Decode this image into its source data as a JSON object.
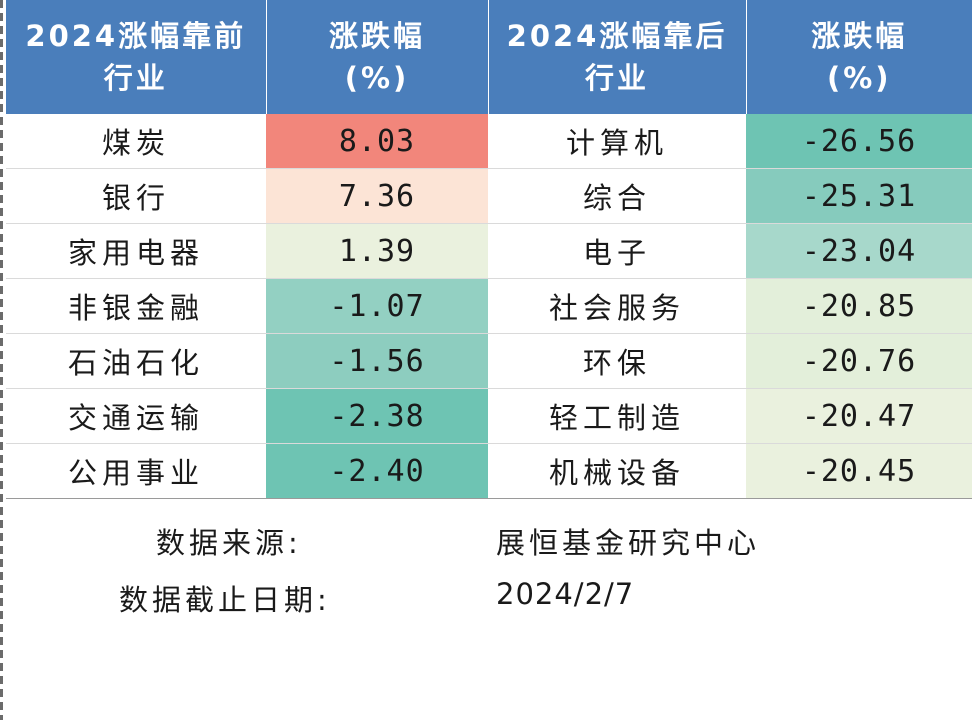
{
  "header": {
    "col1": [
      "2024涨幅靠前",
      "行业"
    ],
    "col2": [
      "涨跌幅",
      "(%)"
    ],
    "col3": [
      "2024涨幅靠后",
      "行业"
    ],
    "col4": [
      "涨跌幅",
      "(%)"
    ]
  },
  "chart_data": {
    "type": "table",
    "columns": [
      "2024涨幅靠前行业",
      "涨跌幅(%)",
      "2024涨幅靠后行业",
      "涨跌幅(%)"
    ],
    "rows": [
      {
        "top_industry": "煤炭",
        "top_change": "8.03",
        "bottom_industry": "计算机",
        "bottom_change": "-26.56"
      },
      {
        "top_industry": "银行",
        "top_change": "7.36",
        "bottom_industry": "综合",
        "bottom_change": "-25.31"
      },
      {
        "top_industry": "家用电器",
        "top_change": "1.39",
        "bottom_industry": "电子",
        "bottom_change": "-23.04"
      },
      {
        "top_industry": "非银金融",
        "top_change": "-1.07",
        "bottom_industry": "社会服务",
        "bottom_change": "-20.85"
      },
      {
        "top_industry": "石油石化",
        "top_change": "-1.56",
        "bottom_industry": "环保",
        "bottom_change": "-20.76"
      },
      {
        "top_industry": "交通运输",
        "top_change": "-2.38",
        "bottom_industry": "轻工制造",
        "bottom_change": "-20.47"
      },
      {
        "top_industry": "公用事业",
        "top_change": "-2.40",
        "bottom_industry": "机械设备",
        "bottom_change": "-20.45"
      }
    ],
    "top_cell_colors": [
      "#f2867b",
      "#fce4d6",
      "#eaf1de",
      "#93d0c2",
      "#8dcdbf",
      "#6ec4b3",
      "#6ec4b3"
    ],
    "bottom_cell_colors": [
      "#6ec4b3",
      "#86cbbd",
      "#a7d8cb",
      "#e3efda",
      "#e3efda",
      "#eaf1de",
      "#eaf1de"
    ]
  },
  "footer": {
    "source_label": "数据来源:",
    "source_value": "展恒基金研究中心",
    "date_label": "数据截止日期:",
    "date_value": "2024/2/7"
  },
  "colors": {
    "header_bg": "#4a7ebb",
    "header_text": "#ffffff"
  }
}
